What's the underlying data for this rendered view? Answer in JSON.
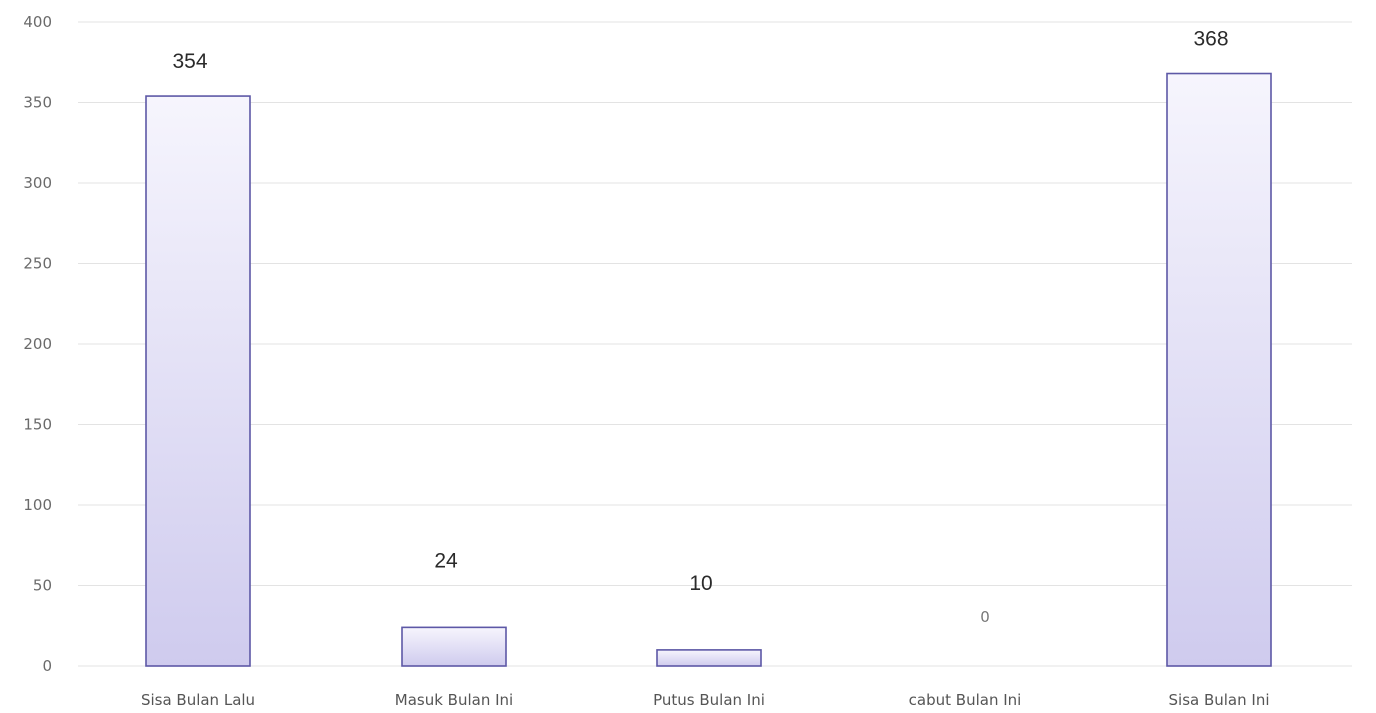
{
  "chart_data": {
    "type": "bar",
    "categories": [
      "Sisa Bulan Lalu",
      "Masuk Bulan Ini",
      "Putus Bulan Ini",
      "cabut Bulan Ini",
      "Sisa Bulan Ini"
    ],
    "values": [
      354,
      24,
      10,
      0,
      368
    ],
    "data_labels": [
      "354",
      "24",
      "10",
      "0",
      "368"
    ],
    "yticks": [
      "0",
      "50",
      "100",
      "150",
      "200",
      "250",
      "300",
      "350",
      "400"
    ],
    "ylim": [
      0,
      400
    ],
    "grid": true,
    "title": "",
    "xlabel": "",
    "ylabel": "",
    "colors": {
      "bar_fill_top": "#f6f5fd",
      "bar_fill_bottom": "#cfcbee",
      "bar_border": "#5d58a6",
      "grid": "#e3e3e3"
    }
  }
}
